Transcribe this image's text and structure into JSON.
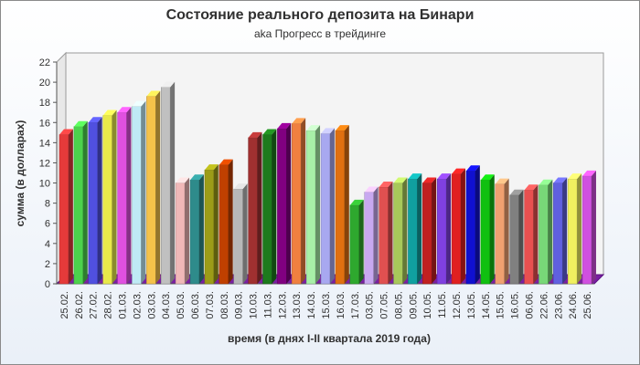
{
  "chart_data": {
    "type": "bar",
    "title": "Состояние реального депозита на Бинари",
    "subtitle": "aka Прогресс в трейдинге",
    "xlabel": "время (в днях I-II квартала 2019 года)",
    "ylabel": "сумма (в долларах)",
    "ylim": [
      0,
      22
    ],
    "yticks": [
      0,
      2,
      4,
      6,
      8,
      10,
      12,
      14,
      16,
      18,
      20,
      22
    ],
    "grid": false,
    "categories": [
      "25.02.",
      "26.02.",
      "27.02.",
      "28.02.",
      "01.03.",
      "02.03.",
      "03.03.",
      "04.03.",
      "05.03.",
      "06.03.",
      "07.03.",
      "08.03.",
      "09.03.",
      "10.03.",
      "11.03.",
      "12.03.",
      "13.03.",
      "14.03.",
      "15.03.",
      "16.03.",
      "17.03.",
      "03.05.",
      "07.05.",
      "08.05.",
      "09.05.",
      "10.05.",
      "11.05.",
      "12.05.",
      "13.05.",
      "14.05.",
      "15.05.",
      "16.05.",
      "06.06.",
      "22.06.",
      "23.06.",
      "24.06.",
      "25.06."
    ],
    "values": [
      14.8,
      15.6,
      16.0,
      16.7,
      17.0,
      17.6,
      18.6,
      19.5,
      10.0,
      10.3,
      11.3,
      11.8,
      9.4,
      14.5,
      14.8,
      15.4,
      15.9,
      15.2,
      14.9,
      15.2,
      7.8,
      9.1,
      9.6,
      10.0,
      10.4,
      10.0,
      10.4,
      10.9,
      11.2,
      10.3,
      9.9,
      8.8,
      9.3,
      9.8,
      10.0,
      10.4,
      10.7
    ],
    "colors": [
      "#e53a3a",
      "#4cd24c",
      "#5050e0",
      "#e8e84a",
      "#e050e0",
      "#bfeaf5",
      "#f5c24a",
      "#c0c0c0",
      "#f0b8b8",
      "#2e8b8b",
      "#9c9c18",
      "#c04000",
      "#b8b8b8",
      "#a03030",
      "#1d7a1d",
      "#800080",
      "#f08040",
      "#a8f0a8",
      "#a8a8f0",
      "#e07010",
      "#2ea82e",
      "#c8a8f0",
      "#e05050",
      "#a8c85a",
      "#10a0a0",
      "#c02020",
      "#8040e0",
      "#e02020",
      "#1010d0",
      "#10c010",
      "#f0a070",
      "#808080",
      "#e85050",
      "#78d878",
      "#6060e0",
      "#f0f060",
      "#d050e0"
    ]
  }
}
